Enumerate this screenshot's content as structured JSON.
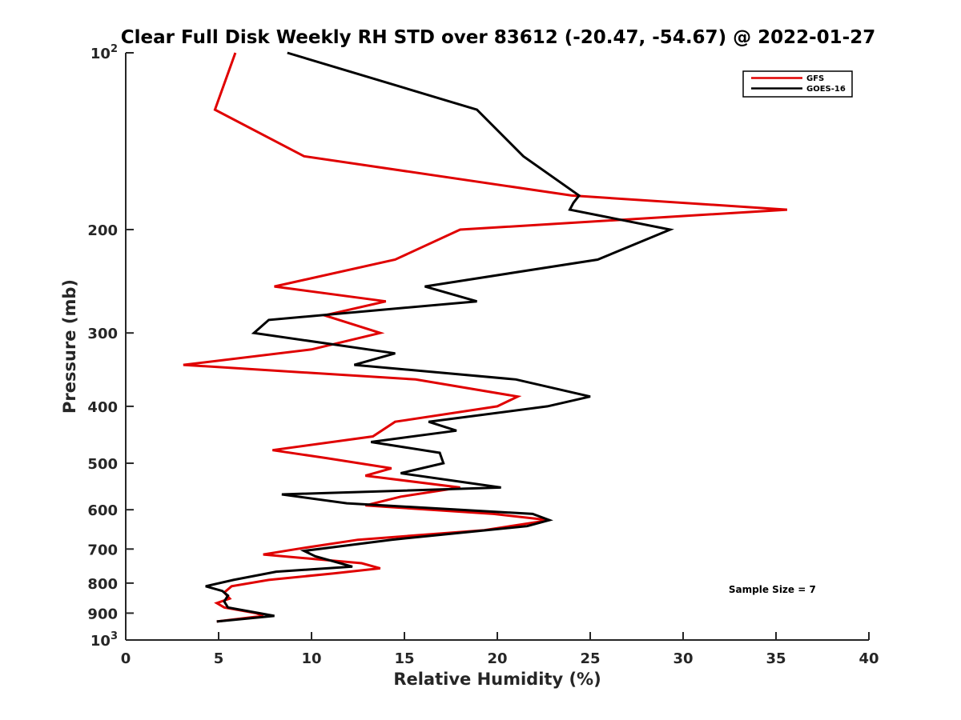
{
  "chart_data": {
    "type": "line",
    "title": "Clear Full Disk Weekly RH STD over 83612 (-20.47, -54.67) @ 2022-01-27",
    "xlabel": "Relative Humidity (%)",
    "ylabel": "Pressure (mb)",
    "xlim": [
      0,
      40
    ],
    "ylim": [
      100,
      1000
    ],
    "y_scale": "log",
    "y_reversed": true,
    "grid": false,
    "legend_position": "top-right",
    "x_ticks": [
      "0",
      "5",
      "10",
      "15",
      "20",
      "25",
      "30",
      "35",
      "40"
    ],
    "y_ticks": [
      {
        "value": 100,
        "base": "10",
        "exp": "2"
      },
      {
        "value": 200,
        "label": "200"
      },
      {
        "value": 300,
        "label": "300"
      },
      {
        "value": 400,
        "label": "400"
      },
      {
        "value": 500,
        "label": "500"
      },
      {
        "value": 600,
        "label": "600"
      },
      {
        "value": 700,
        "label": "700"
      },
      {
        "value": 800,
        "label": "800"
      },
      {
        "value": 900,
        "label": "900"
      },
      {
        "value": 1000,
        "base": "10",
        "exp": "3"
      }
    ],
    "series": [
      {
        "name": "GFS",
        "color": "#e00000",
        "points": [
          [
            5.9,
            100
          ],
          [
            4.8,
            125
          ],
          [
            9.6,
            150
          ],
          [
            24.0,
            175
          ],
          [
            35.6,
            185
          ],
          [
            18.0,
            200
          ],
          [
            14.5,
            225
          ],
          [
            8.0,
            250
          ],
          [
            14.0,
            265
          ],
          [
            10.7,
            280
          ],
          [
            13.7,
            300
          ],
          [
            10.0,
            320
          ],
          [
            3.1,
            340
          ],
          [
            15.6,
            360
          ],
          [
            21.1,
            385
          ],
          [
            20.0,
            400
          ],
          [
            14.5,
            425
          ],
          [
            13.3,
            450
          ],
          [
            7.9,
            475
          ],
          [
            10.8,
            490
          ],
          [
            14.3,
            510
          ],
          [
            12.9,
            525
          ],
          [
            18.0,
            550
          ],
          [
            14.8,
            570
          ],
          [
            12.9,
            590
          ],
          [
            19.8,
            610
          ],
          [
            22.8,
            625
          ],
          [
            19.3,
            650
          ],
          [
            12.5,
            675
          ],
          [
            9.2,
            700
          ],
          [
            7.4,
            715
          ],
          [
            12.7,
            740
          ],
          [
            13.7,
            755
          ],
          [
            11.2,
            770
          ],
          [
            7.7,
            790
          ],
          [
            5.7,
            810
          ],
          [
            5.3,
            830
          ],
          [
            5.6,
            850
          ],
          [
            4.9,
            865
          ],
          [
            5.3,
            880
          ],
          [
            7.0,
            900
          ],
          [
            7.4,
            910
          ],
          [
            4.9,
            930
          ]
        ]
      },
      {
        "name": "GOES-16",
        "color": "#000000",
        "points": [
          [
            8.7,
            100
          ],
          [
            18.9,
            125
          ],
          [
            21.4,
            150
          ],
          [
            24.4,
            175
          ],
          [
            24.1,
            180
          ],
          [
            23.9,
            185
          ],
          [
            29.3,
            200
          ],
          [
            25.4,
            225
          ],
          [
            16.1,
            250
          ],
          [
            18.9,
            265
          ],
          [
            7.7,
            285
          ],
          [
            6.9,
            300
          ],
          [
            14.5,
            325
          ],
          [
            12.3,
            340
          ],
          [
            21.0,
            360
          ],
          [
            25.0,
            385
          ],
          [
            22.7,
            400
          ],
          [
            16.3,
            425
          ],
          [
            17.8,
            440
          ],
          [
            13.2,
            460
          ],
          [
            16.9,
            480
          ],
          [
            17.1,
            500
          ],
          [
            14.8,
            520
          ],
          [
            20.2,
            550
          ],
          [
            8.4,
            565
          ],
          [
            11.9,
            585
          ],
          [
            21.9,
            610
          ],
          [
            22.8,
            625
          ],
          [
            21.6,
            640
          ],
          [
            14.3,
            675
          ],
          [
            9.6,
            705
          ],
          [
            10.2,
            720
          ],
          [
            12.2,
            750
          ],
          [
            8.1,
            765
          ],
          [
            5.8,
            790
          ],
          [
            4.3,
            810
          ],
          [
            5.2,
            825
          ],
          [
            5.5,
            840
          ],
          [
            5.3,
            860
          ],
          [
            5.5,
            880
          ],
          [
            8.0,
            910
          ],
          [
            4.9,
            930
          ]
        ]
      }
    ],
    "annotations": [
      {
        "text": "Sample Size = 7",
        "x": 34.8,
        "y": 910
      }
    ]
  }
}
